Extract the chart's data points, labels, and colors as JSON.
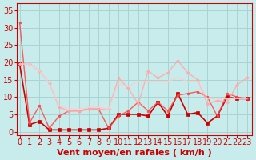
{
  "background_color": "#c8ecec",
  "grid_color": "#aad4d4",
  "xlabel": "Vent moyen/en rafales ( km/h )",
  "xlabel_color": "#cc0000",
  "xlabel_fontsize": 8,
  "tick_label_color": "#cc0000",
  "tick_fontsize": 7,
  "yticks": [
    0,
    5,
    10,
    15,
    20,
    25,
    30,
    35
  ],
  "xticks": [
    0,
    1,
    2,
    3,
    4,
    5,
    6,
    7,
    8,
    9,
    10,
    11,
    12,
    13,
    14,
    15,
    16,
    17,
    18,
    19,
    20,
    21,
    22,
    23
  ],
  "xlim": [
    -0.3,
    23.5
  ],
  "ylim": [
    -1,
    37
  ],
  "series": [
    {
      "x": [
        0,
        1,
        2,
        3,
        4,
        5,
        6,
        7,
        8,
        9,
        10,
        11,
        12,
        13,
        14,
        15,
        16,
        17,
        18,
        19,
        20,
        21,
        22,
        23
      ],
      "y": [
        19.5,
        2.0,
        3.0,
        0.5,
        0.5,
        0.5,
        0.5,
        0.5,
        0.5,
        1.0,
        5.0,
        5.0,
        5.0,
        4.5,
        8.5,
        4.5,
        11.0,
        5.0,
        5.5,
        2.5,
        4.5,
        10.0,
        9.5,
        9.5
      ],
      "color": "#cc0000",
      "linewidth": 1.2,
      "marker": "s",
      "markersize": 2.5,
      "alpha": 1.0
    },
    {
      "x": [
        0,
        1,
        2,
        3,
        4,
        5,
        6,
        7,
        8,
        9,
        10,
        11,
        12,
        13,
        14,
        15,
        16,
        17,
        18,
        19,
        20,
        21,
        22,
        23
      ],
      "y": [
        31.5,
        2.5,
        7.5,
        1.0,
        4.5,
        6.0,
        6.0,
        6.5,
        6.5,
        1.0,
        4.5,
        6.0,
        8.5,
        6.0,
        8.5,
        6.0,
        10.5,
        11.0,
        11.5,
        10.0,
        4.5,
        11.0,
        10.0,
        9.5
      ],
      "color": "#ff4444",
      "linewidth": 1.0,
      "marker": "o",
      "markersize": 2.0,
      "alpha": 0.85
    },
    {
      "x": [
        0,
        1,
        2,
        3,
        4,
        5,
        6,
        7,
        8,
        9,
        10,
        11,
        12,
        13,
        14,
        15,
        16,
        17,
        18,
        19,
        20,
        21,
        22,
        23
      ],
      "y": [
        19.5,
        19.5,
        17.5,
        14.0,
        7.0,
        6.0,
        6.0,
        6.5,
        6.5,
        6.5,
        15.5,
        12.5,
        8.0,
        17.5,
        15.5,
        17.0,
        20.5,
        17.0,
        15.0,
        8.0,
        9.0,
        8.5,
        13.5,
        15.5
      ],
      "color": "#ffaaaa",
      "linewidth": 1.0,
      "marker": "D",
      "markersize": 2.0,
      "alpha": 0.9
    },
    {
      "x": [
        0,
        1,
        2,
        3,
        4,
        5,
        6,
        7,
        8,
        9,
        10,
        11,
        12,
        13,
        14,
        15,
        16,
        17,
        18,
        19,
        20,
        21,
        22,
        23
      ],
      "y": [
        19.5,
        19.5,
        17.5,
        14.0,
        7.5,
        6.5,
        6.5,
        7.0,
        7.0,
        6.5,
        14.0,
        13.0,
        14.5,
        14.5,
        14.5,
        14.5,
        15.5,
        14.5,
        14.5,
        9.5,
        9.5,
        9.5,
        9.5,
        9.5
      ],
      "color": "#ffcccc",
      "linewidth": 1.0,
      "marker": null,
      "markersize": 0,
      "alpha": 0.9
    }
  ]
}
